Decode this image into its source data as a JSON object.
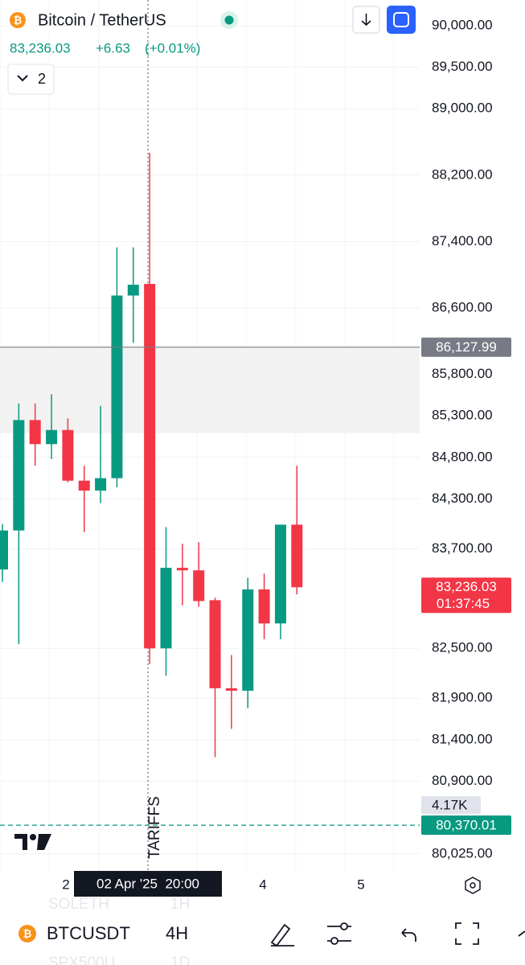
{
  "header": {
    "symbol_title": "Bitcoin / TetherUS",
    "last_price": "83,236.03",
    "change": "+6.63",
    "change_percent": "(+0.01%)",
    "indicators_count": "2"
  },
  "chart_data": {
    "type": "candlestick",
    "open": [
      83450,
      83920,
      85250,
      84960,
      85130,
      84520,
      84400,
      84550,
      86750,
      86890,
      82500,
      83470,
      83440,
      83080,
      82020,
      81990,
      83210,
      82800,
      83990
    ],
    "high": [
      84000,
      85450,
      85450,
      85560,
      85270,
      84700,
      85420,
      87330,
      87330,
      88470,
      83960,
      83760,
      83780,
      83110,
      82420,
      83350,
      83400,
      83990,
      84700
    ],
    "low": [
      83300,
      82550,
      84700,
      84780,
      84500,
      83900,
      84250,
      84440,
      86180,
      82310,
      82170,
      83020,
      83000,
      81190,
      81530,
      81780,
      82610,
      82610,
      83150
    ],
    "close": [
      83920,
      85250,
      84960,
      85130,
      84520,
      84400,
      84550,
      86750,
      86880,
      82500,
      83470,
      83440,
      83070,
      82020,
      81990,
      83210,
      82800,
      83990,
      83236.03
    ],
    "up_color": "#089981",
    "down_color": "#f23645",
    "ylim": [
      79800,
      90300
    ],
    "yticks": [
      {
        "value": 90000,
        "label": "90,000.00"
      },
      {
        "value": 89500,
        "label": "89,500.00"
      },
      {
        "value": 89000,
        "label": "89,000.00"
      },
      {
        "value": 88200,
        "label": "88,200.00"
      },
      {
        "value": 87400,
        "label": "87,400.00"
      },
      {
        "value": 86600,
        "label": "86,600.00"
      },
      {
        "value": 85800,
        "label": "85,800.00"
      },
      {
        "value": 85300,
        "label": "85,300.00"
      },
      {
        "value": 84800,
        "label": "84,800.00"
      },
      {
        "value": 84300,
        "label": "84,300.00"
      },
      {
        "value": 83700,
        "label": "83,700.00"
      },
      {
        "value": 82500,
        "label": "82,500.00"
      },
      {
        "value": 81900,
        "label": "81,900.00"
      },
      {
        "value": 81400,
        "label": "81,400.00"
      },
      {
        "value": 80900,
        "label": "80,900.00"
      },
      {
        "value": 80025,
        "label": "80,025.00"
      }
    ],
    "x_labels": [
      "2",
      "4",
      "5"
    ],
    "crosshair_label": "02 Apr '25  20:00",
    "annotation": "TARIFFS",
    "price_lines": [
      {
        "value": 86127.99,
        "label": "86,127.99",
        "color": "#787b86"
      },
      {
        "value": 80370.01,
        "label": "80,370.01",
        "color": "#089981"
      }
    ],
    "last_price_tag": {
      "value": 83236.03,
      "label": "83,236.03",
      "countdown": "01:37:45",
      "color": "#f23645"
    },
    "volume_label": "4.17K"
  },
  "bottom_bar": {
    "symbol": "BTCUSDT",
    "interval": "4H",
    "ghost_symbols": [
      "SOLETH",
      "SPX500U"
    ],
    "ghost_intervals": [
      "1H",
      "1D"
    ]
  }
}
